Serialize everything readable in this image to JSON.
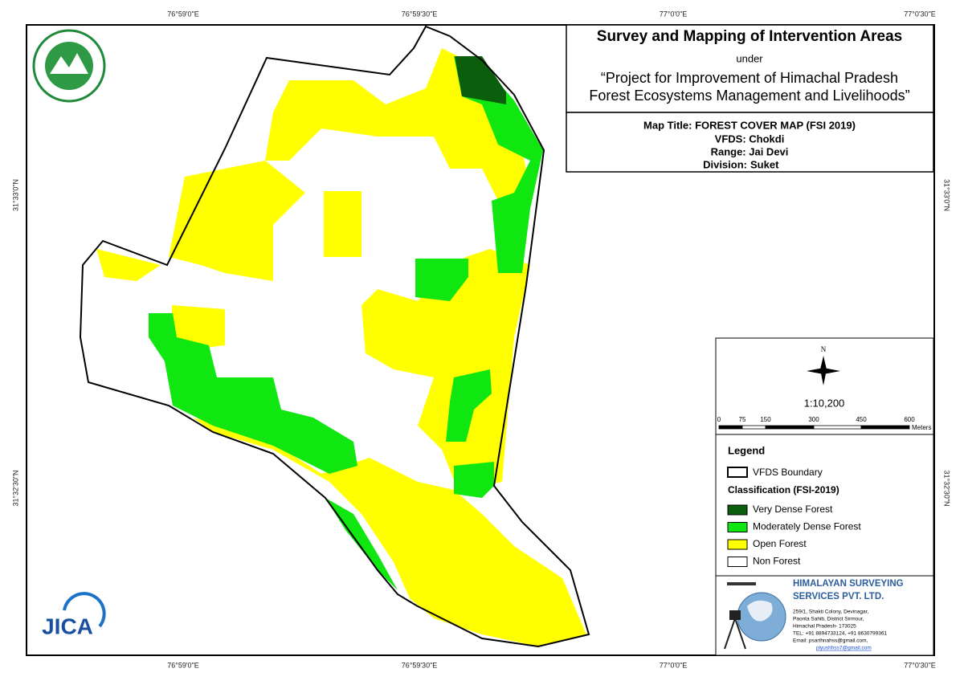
{
  "coordinates": {
    "top": [
      "76°59'0\"E",
      "76°59'30\"E",
      "77°0'0\"E",
      "77°0'30\"E"
    ],
    "bottom": [
      "76°59'0\"E",
      "76°59'30\"E",
      "77°0'0\"E",
      "77°0'30\"E"
    ],
    "left": [
      "31°33'0\"N",
      "31°32'30\"N"
    ],
    "right": [
      "31°33'0\"N",
      "31°32'30\"N"
    ]
  },
  "header": {
    "title": "Survey and Mapping of Intervention Areas",
    "under": "under",
    "project_line1": "“Project for Improvement of Himachal Pradesh",
    "project_line2": "Forest Ecosystems Management and Livelihoods”"
  },
  "map_info": {
    "map_title": "Map Title: FOREST COVER MAP (FSI 2019)",
    "vfds": "VFDS: Chokdi",
    "range": "Range: Jai Devi",
    "division": "Suket",
    "division_label": "Division:"
  },
  "scale": {
    "north": "N",
    "ratio": "1:10,200",
    "ticks": [
      "0",
      "75",
      "150",
      "300",
      "450",
      "600"
    ],
    "unit": "Meters"
  },
  "legend": {
    "title": "Legend",
    "boundary": "VFDS Boundary",
    "classification_title": "Classification (FSI-2019)",
    "items": [
      {
        "label": "Very Dense Forest",
        "color": "#0b5e0b"
      },
      {
        "label": "Moderately Dense Forest",
        "color": "#10e610"
      },
      {
        "label": "Open Forest",
        "color": "#ffff00"
      },
      {
        "label": "Non Forest",
        "color": "#ffffff"
      }
    ]
  },
  "company": {
    "name_line1": "HIMALAYAN SURVEYING",
    "name_line2": "SERVICES PVT. LTD.",
    "address": [
      "259/1, Shakti Colony, Devinagar,",
      "Paonta Sahib, District Sirmour,",
      "Himachal Pradesh- 173025",
      "TEL: +91 8894733124, +91 8630799361"
    ],
    "emails": [
      "Email: psarthnahss@gmail.com,",
      "piyushhss7@gmail.com"
    ]
  },
  "logo_text": "JICA"
}
